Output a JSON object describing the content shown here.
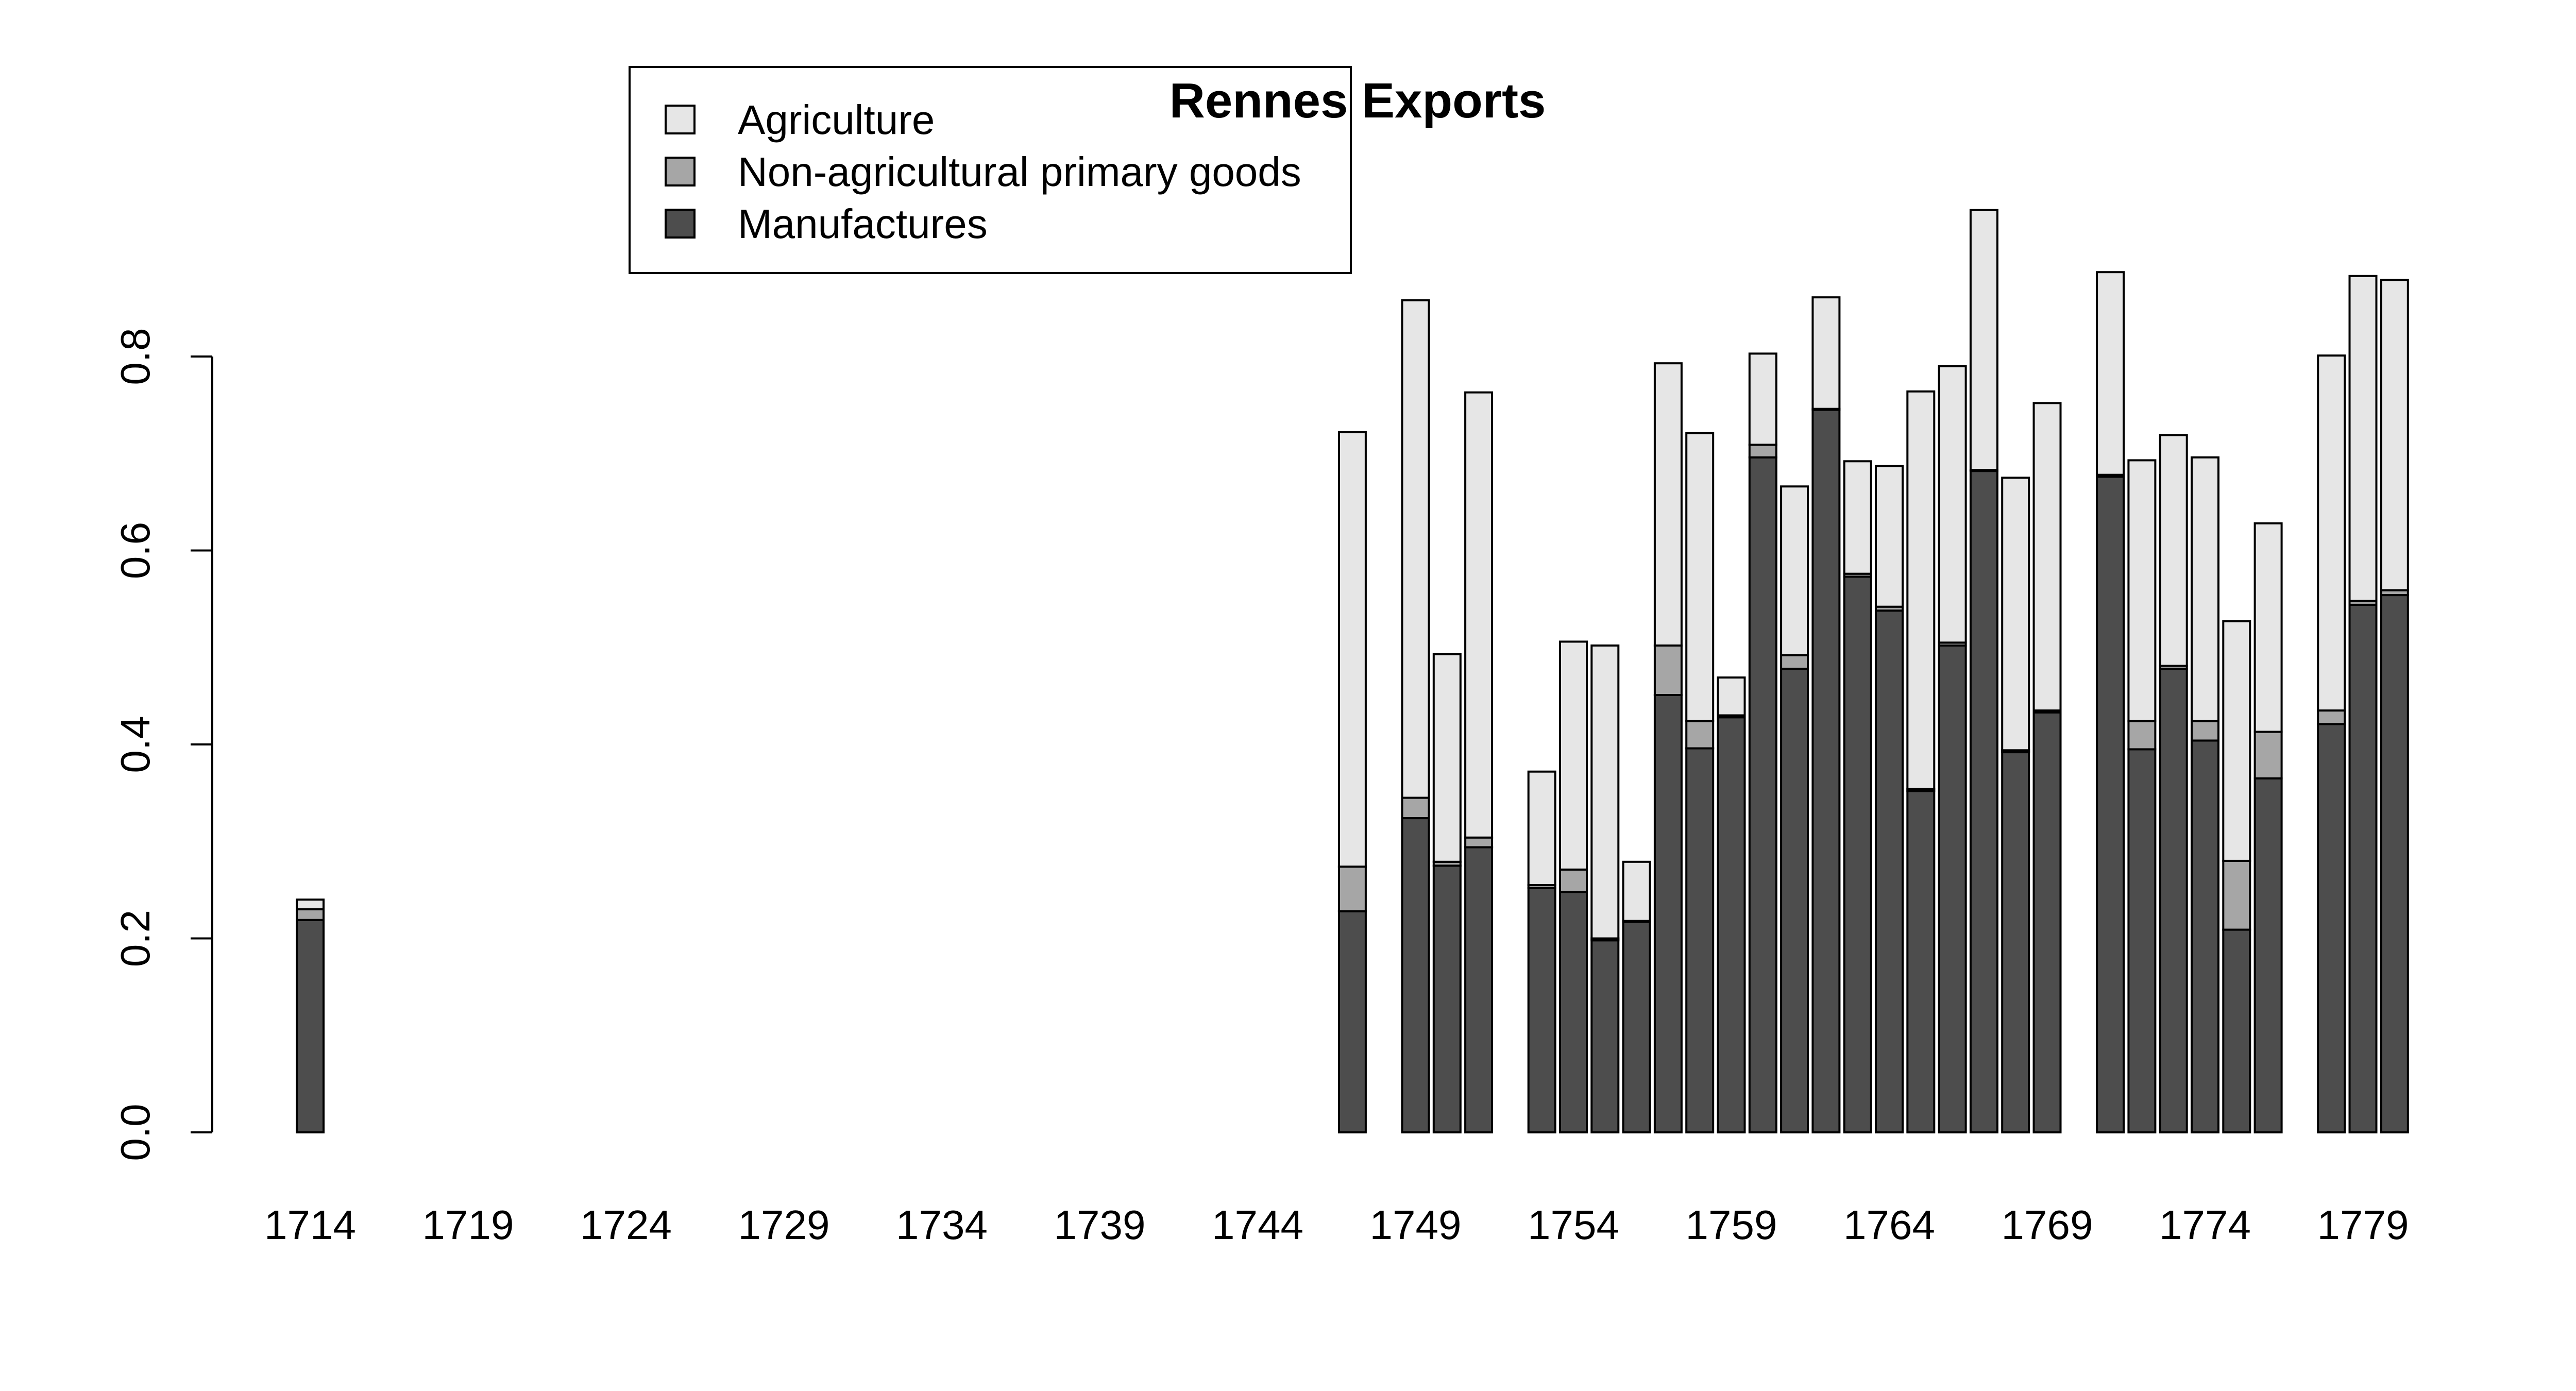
{
  "chart_data": {
    "type": "bar",
    "stacked": true,
    "title": "Rennes Exports",
    "xlabel": "",
    "ylabel": "",
    "ylim": [
      0,
      0.8
    ],
    "y_ticks": [
      "0.0",
      "0.2",
      "0.4",
      "0.6",
      "0.8"
    ],
    "x_tick_labels": [
      "1714",
      "1719",
      "1724",
      "1729",
      "1734",
      "1739",
      "1744",
      "1749",
      "1754",
      "1759",
      "1764",
      "1769",
      "1774",
      "1779"
    ],
    "x_range": [
      1714,
      1780
    ],
    "legend_position": "top-left",
    "series": [
      {
        "name": "Manufactures",
        "color": "#4d4d4d"
      },
      {
        "name": "Non-agricultural primary goods",
        "color": "#a6a6a6"
      },
      {
        "name": "Agriculture",
        "color": "#e6e6e6"
      }
    ],
    "points": [
      {
        "year": 1714,
        "values": [
          0.219,
          0.011,
          0.01
        ]
      },
      {
        "year": 1747,
        "values": [
          0.228,
          0.046,
          0.448
        ]
      },
      {
        "year": 1749,
        "values": [
          0.324,
          0.021,
          0.513
        ]
      },
      {
        "year": 1750,
        "values": [
          0.275,
          0.004,
          0.214
        ]
      },
      {
        "year": 1751,
        "values": [
          0.294,
          0.01,
          0.459
        ]
      },
      {
        "year": 1753,
        "values": [
          0.252,
          0.003,
          0.117
        ]
      },
      {
        "year": 1754,
        "values": [
          0.248,
          0.023,
          0.235
        ]
      },
      {
        "year": 1755,
        "values": [
          0.198,
          0.002,
          0.302
        ]
      },
      {
        "year": 1756,
        "values": [
          0.217,
          0.001,
          0.061
        ]
      },
      {
        "year": 1757,
        "values": [
          0.451,
          0.051,
          0.291
        ]
      },
      {
        "year": 1758,
        "values": [
          0.396,
          0.028,
          0.297
        ]
      },
      {
        "year": 1759,
        "values": [
          0.428,
          0.002,
          0.039
        ]
      },
      {
        "year": 1760,
        "values": [
          0.696,
          0.013,
          0.094
        ]
      },
      {
        "year": 1761,
        "values": [
          0.478,
          0.014,
          0.174
        ]
      },
      {
        "year": 1762,
        "values": [
          0.745,
          0.001,
          0.115
        ]
      },
      {
        "year": 1763,
        "values": [
          0.573,
          0.003,
          0.116
        ]
      },
      {
        "year": 1764,
        "values": [
          0.538,
          0.004,
          0.145
        ]
      },
      {
        "year": 1765,
        "values": [
          0.352,
          0.002,
          0.41
        ]
      },
      {
        "year": 1766,
        "values": [
          0.502,
          0.003,
          0.285
        ]
      },
      {
        "year": 1767,
        "values": [
          0.682,
          0.001,
          0.268
        ]
      },
      {
        "year": 1768,
        "values": [
          0.392,
          0.002,
          0.281
        ]
      },
      {
        "year": 1769,
        "values": [
          0.433,
          0.002,
          0.317
        ]
      },
      {
        "year": 1771,
        "values": [
          0.676,
          0.002,
          0.209
        ]
      },
      {
        "year": 1772,
        "values": [
          0.395,
          0.029,
          0.269
        ]
      },
      {
        "year": 1773,
        "values": [
          0.478,
          0.003,
          0.238
        ]
      },
      {
        "year": 1774,
        "values": [
          0.404,
          0.02,
          0.272
        ]
      },
      {
        "year": 1775,
        "values": [
          0.209,
          0.071,
          0.247
        ]
      },
      {
        "year": 1776,
        "values": [
          0.365,
          0.048,
          0.215
        ]
      },
      {
        "year": 1778,
        "values": [
          0.421,
          0.014,
          0.366
        ]
      },
      {
        "year": 1779,
        "values": [
          0.544,
          0.004,
          0.335
        ]
      },
      {
        "year": 1780,
        "values": [
          0.554,
          0.005,
          0.32
        ]
      }
    ]
  }
}
